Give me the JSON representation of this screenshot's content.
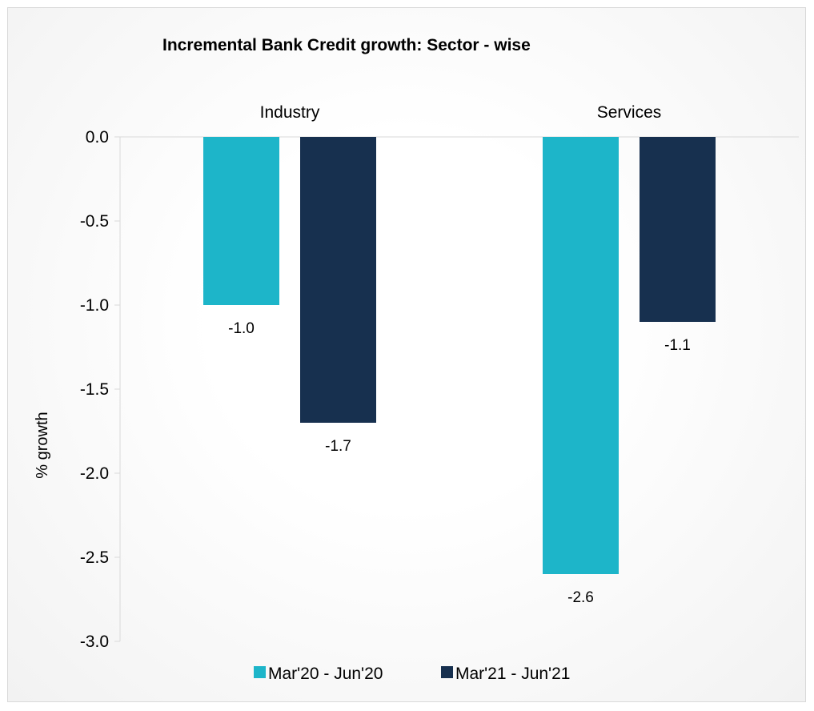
{
  "chart_data": {
    "type": "bar",
    "title": "Incremental Bank Credit growth: Sector - wise",
    "xlabel": "",
    "ylabel": "% growth",
    "categories": [
      "Industry",
      "Services"
    ],
    "series": [
      {
        "name": "Mar'20 - Jun'20",
        "values": [
          -1.0,
          -2.6
        ],
        "color": "#1db5c9",
        "labels": [
          "-1.0",
          "-2.6"
        ]
      },
      {
        "name": "Mar'21 - Jun'21",
        "values": [
          -1.7,
          -1.1
        ],
        "color": "#17304f",
        "labels": [
          "-1.7",
          "-1.1"
        ]
      }
    ],
    "ylim": [
      -3.0,
      0.0
    ],
    "yticks": [
      0.0,
      -0.5,
      -1.0,
      -1.5,
      -2.0,
      -2.5,
      -3.0
    ],
    "ytick_labels": [
      "0.0",
      "-0.5",
      "-1.0",
      "-1.5",
      "-2.0",
      "-2.5",
      "-3.0"
    ],
    "category_labels_position": "top",
    "legend_position": "bottom",
    "grid": false
  }
}
